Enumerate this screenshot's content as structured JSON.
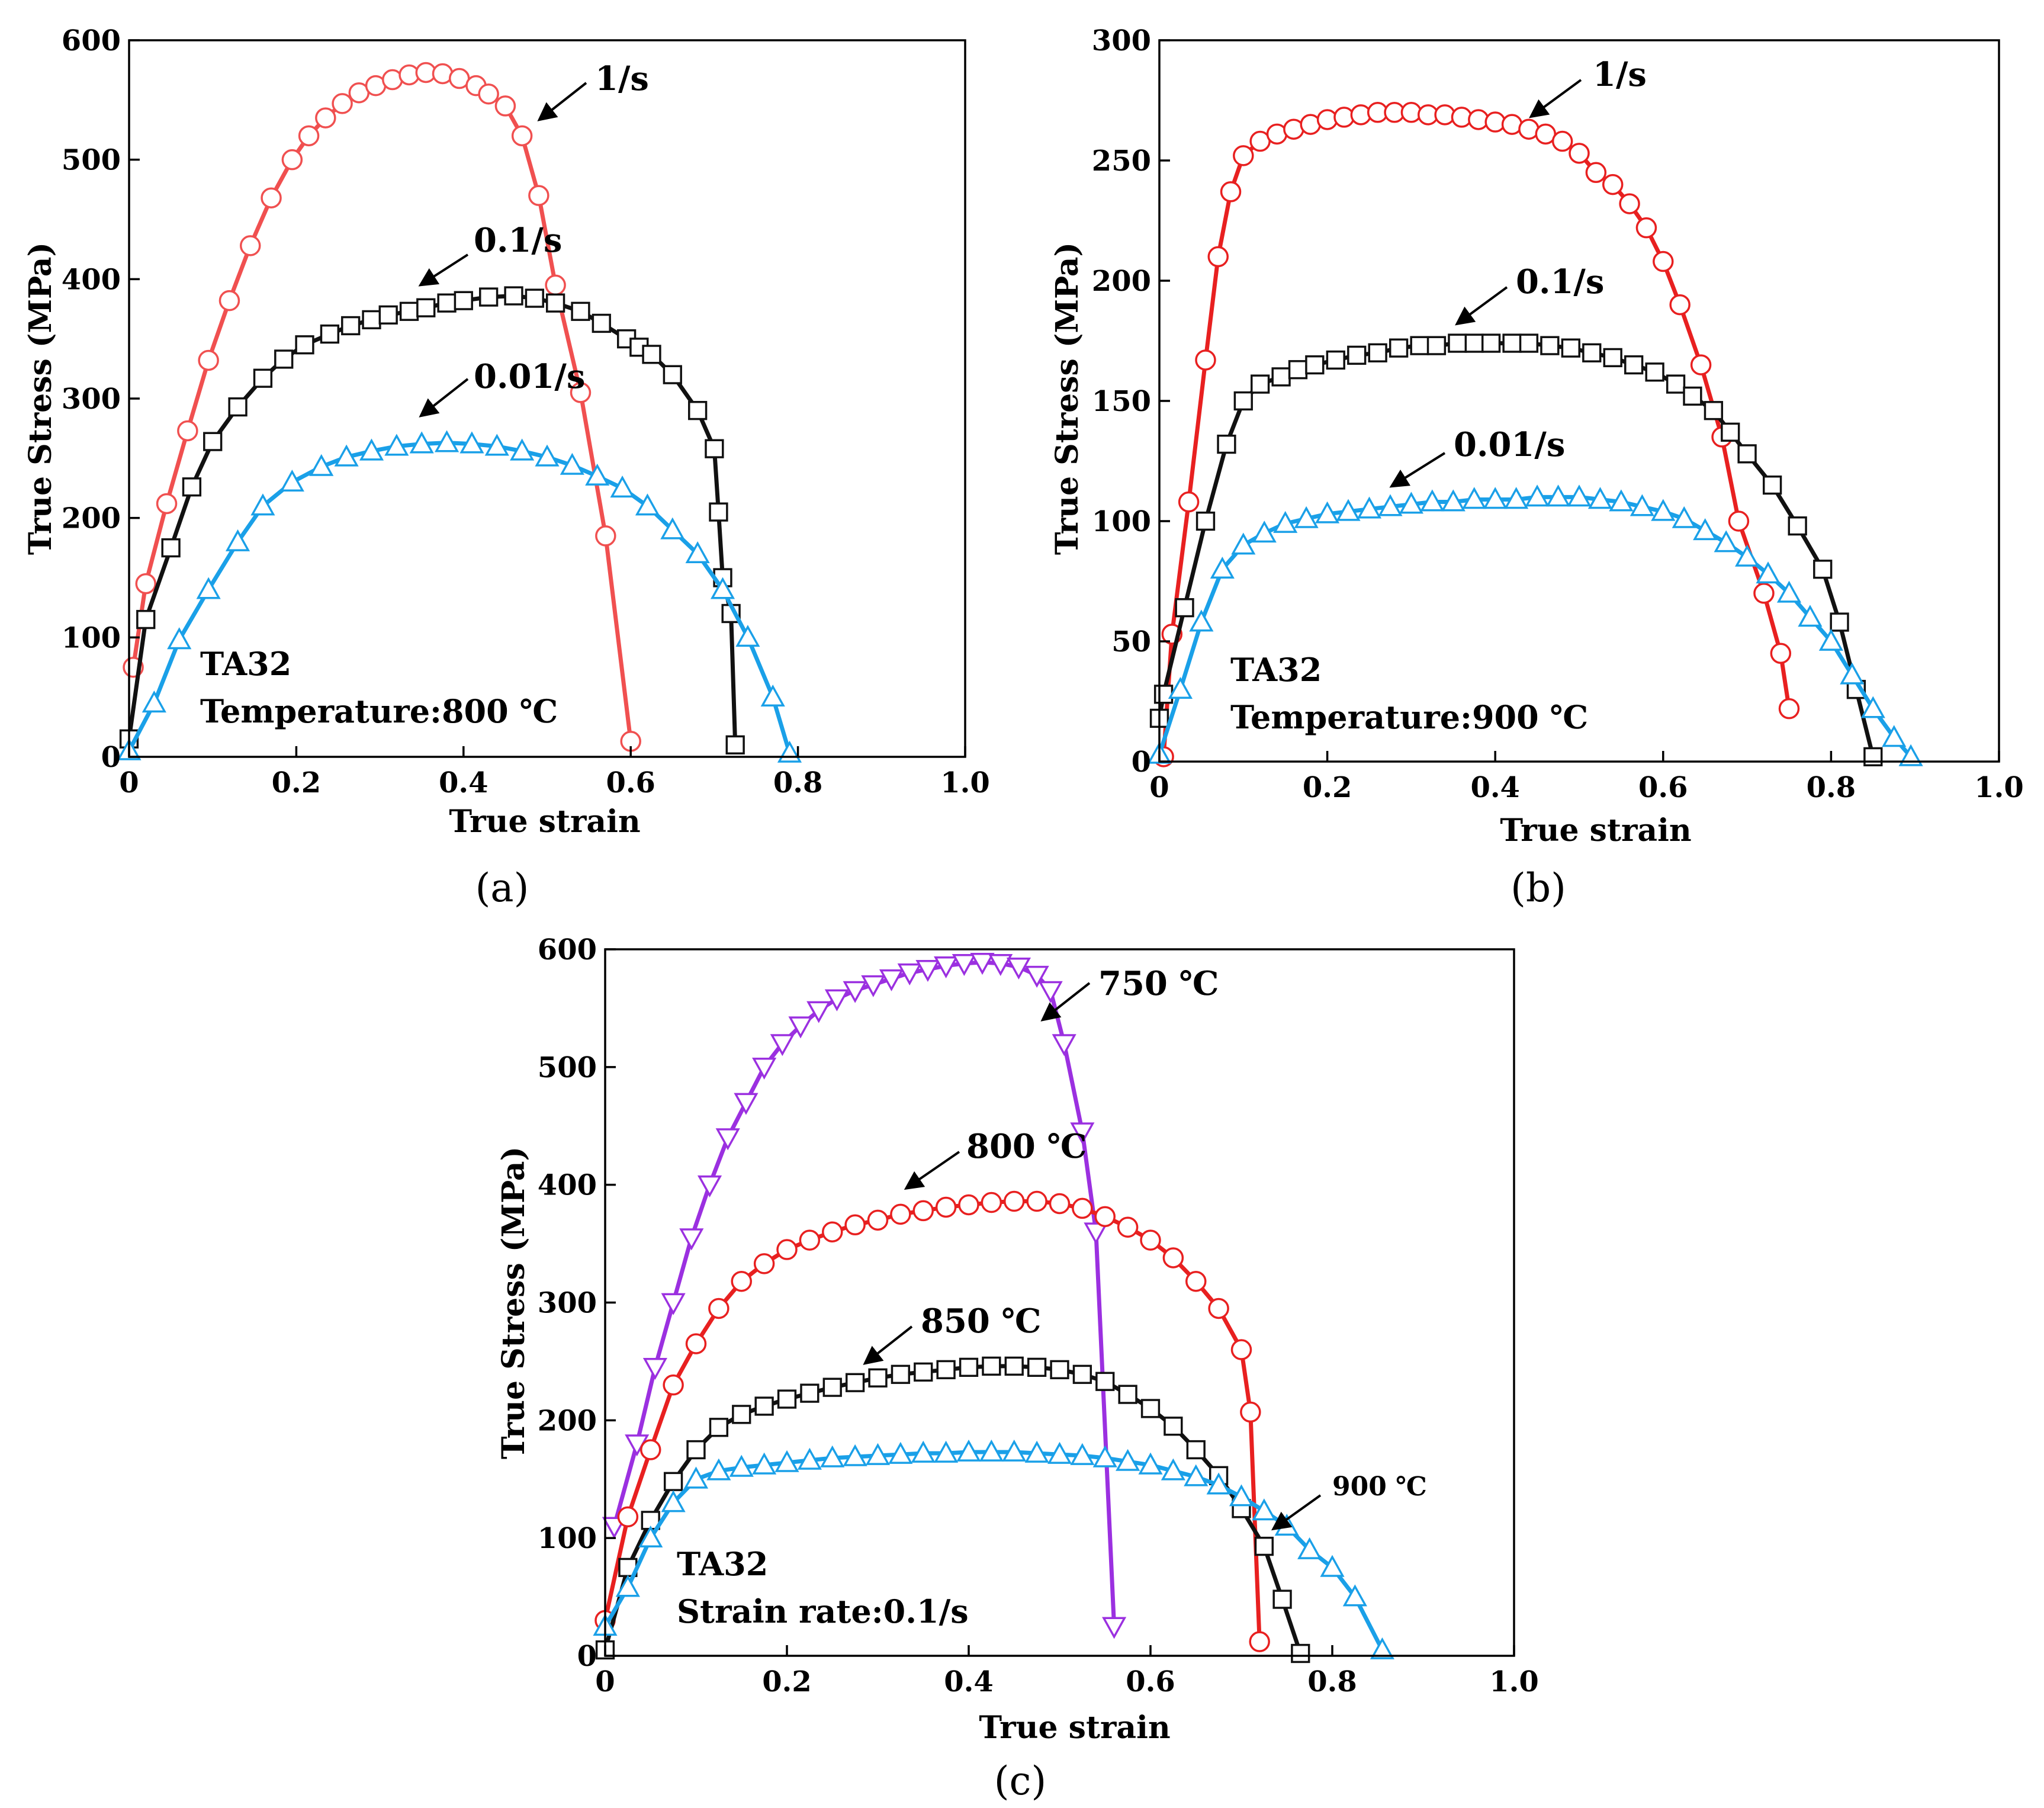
{
  "chart_data": [
    {
      "type": "line",
      "panel_label": "(a)",
      "xlabel": "True strain",
      "ylabel": "True Stress (MPa)",
      "xlim": [
        0,
        1.0
      ],
      "ylim": [
        0,
        600
      ],
      "xticks": [
        0,
        0.2,
        0.4,
        0.6,
        0.8,
        1.0
      ],
      "xtick_labels": [
        "0",
        "0.2",
        "0.4",
        "0.6",
        "0.8",
        "1.0"
      ],
      "yticks": [
        0,
        100,
        200,
        300,
        400,
        500,
        600
      ],
      "ytick_labels": [
        "0",
        "100",
        "200",
        "300",
        "400",
        "500",
        "600"
      ],
      "notes": [
        "TA32",
        "Temperature:800 ℃"
      ],
      "series": [
        {
          "name": "1/s",
          "color": "#f05050",
          "marker": "circle",
          "x": [
            0.005,
            0.02,
            0.045,
            0.07,
            0.095,
            0.12,
            0.145,
            0.17,
            0.195,
            0.215,
            0.235,
            0.255,
            0.275,
            0.295,
            0.315,
            0.335,
            0.355,
            0.375,
            0.395,
            0.415,
            0.43,
            0.45,
            0.47,
            0.49,
            0.51,
            0.54,
            0.57,
            0.6
          ],
          "y": [
            75,
            145,
            212,
            273,
            332,
            382,
            428,
            468,
            500,
            520,
            535,
            547,
            556,
            562,
            567,
            571,
            573,
            572,
            568,
            562,
            555,
            545,
            520,
            470,
            395,
            305,
            185,
            13
          ]
        },
        {
          "name": "0.1/s",
          "color": "#111111",
          "marker": "square",
          "x": [
            0,
            0.02,
            0.05,
            0.075,
            0.1,
            0.13,
            0.16,
            0.185,
            0.21,
            0.24,
            0.265,
            0.29,
            0.31,
            0.335,
            0.355,
            0.38,
            0.4,
            0.43,
            0.46,
            0.485,
            0.51,
            0.54,
            0.565,
            0.595,
            0.61,
            0.625,
            0.65,
            0.68,
            0.7,
            0.705,
            0.71,
            0.72,
            0.725
          ],
          "y": [
            15,
            115,
            175,
            226,
            264,
            293,
            317,
            333,
            345,
            354,
            361,
            366,
            370,
            373,
            376,
            380,
            382,
            385,
            386,
            384,
            380,
            373,
            363,
            350,
            343,
            337,
            320,
            290,
            258,
            205,
            150,
            120,
            10
          ]
        },
        {
          "name": "0.01/s",
          "color": "#1aa0e8",
          "marker": "triangle-up",
          "x": [
            0,
            0.03,
            0.06,
            0.095,
            0.13,
            0.16,
            0.195,
            0.23,
            0.26,
            0.29,
            0.32,
            0.35,
            0.38,
            0.41,
            0.44,
            0.47,
            0.5,
            0.53,
            0.56,
            0.59,
            0.62,
            0.65,
            0.68,
            0.71,
            0.74,
            0.77,
            0.79
          ],
          "y": [
            5,
            45,
            98,
            140,
            180,
            210,
            230,
            243,
            251,
            256,
            260,
            262,
            263,
            262,
            260,
            256,
            251,
            244,
            235,
            225,
            210,
            190,
            170,
            140,
            100,
            50,
            3
          ]
        }
      ],
      "annotations": [
        "1/s",
        "0.1/s",
        "0.01/s"
      ]
    },
    {
      "type": "line",
      "panel_label": "(b)",
      "xlabel": "True strain",
      "ylabel": "True Stress (MPa)",
      "xlim": [
        0,
        1.0
      ],
      "ylim": [
        0,
        300
      ],
      "xticks": [
        0,
        0.2,
        0.4,
        0.6,
        0.8,
        1.0
      ],
      "xtick_labels": [
        "0",
        "0.2",
        "0.4",
        "0.6",
        "0.8",
        "1.0"
      ],
      "yticks": [
        0,
        50,
        100,
        150,
        200,
        250,
        300
      ],
      "ytick_labels": [
        "0",
        "50",
        "100",
        "150",
        "200",
        "250",
        "300"
      ],
      "notes": [
        "TA32",
        "Temperature:900 ℃"
      ],
      "series": [
        {
          "name": "1/s",
          "color": "#e82020",
          "marker": "circle",
          "x": [
            0.005,
            0.015,
            0.035,
            0.055,
            0.07,
            0.085,
            0.1,
            0.12,
            0.14,
            0.16,
            0.18,
            0.2,
            0.22,
            0.24,
            0.26,
            0.28,
            0.3,
            0.32,
            0.34,
            0.36,
            0.38,
            0.4,
            0.42,
            0.44,
            0.46,
            0.48,
            0.5,
            0.52,
            0.54,
            0.56,
            0.58,
            0.6,
            0.62,
            0.645,
            0.67,
            0.69,
            0.72,
            0.74,
            0.75
          ],
          "y": [
            2,
            53,
            108,
            167,
            210,
            237,
            252,
            258,
            261,
            263,
            265,
            267,
            268,
            269,
            270,
            270,
            270,
            269,
            269,
            268,
            267,
            266,
            265,
            263,
            261,
            258,
            253,
            245,
            240,
            232,
            222,
            208,
            190,
            165,
            135,
            100,
            70,
            45,
            22
          ]
        },
        {
          "name": "0.1/s",
          "color": "#111111",
          "marker": "square",
          "x": [
            0,
            0.005,
            0.03,
            0.055,
            0.08,
            0.1,
            0.12,
            0.145,
            0.165,
            0.185,
            0.21,
            0.235,
            0.26,
            0.285,
            0.31,
            0.33,
            0.355,
            0.375,
            0.395,
            0.42,
            0.44,
            0.465,
            0.49,
            0.515,
            0.54,
            0.565,
            0.59,
            0.615,
            0.635,
            0.66,
            0.68,
            0.7,
            0.73,
            0.76,
            0.79,
            0.81,
            0.83,
            0.85
          ],
          "y": [
            18,
            28,
            64,
            100,
            132,
            150,
            157,
            160,
            163,
            165,
            167,
            169,
            170,
            172,
            173,
            173,
            174,
            174,
            174,
            174,
            174,
            173,
            172,
            170,
            168,
            165,
            162,
            157,
            152,
            146,
            137,
            128,
            115,
            98,
            80,
            58,
            30,
            2
          ]
        },
        {
          "name": "0.01/s",
          "color": "#1aa0e8",
          "marker": "triangle-up",
          "x": [
            0,
            0.025,
            0.05,
            0.075,
            0.1,
            0.125,
            0.15,
            0.175,
            0.2,
            0.225,
            0.25,
            0.275,
            0.3,
            0.325,
            0.35,
            0.375,
            0.4,
            0.425,
            0.45,
            0.475,
            0.5,
            0.525,
            0.55,
            0.575,
            0.6,
            0.625,
            0.65,
            0.675,
            0.7,
            0.725,
            0.75,
            0.775,
            0.8,
            0.825,
            0.85,
            0.875,
            0.895
          ],
          "y": [
            3,
            30,
            58,
            80,
            90,
            95,
            99,
            101,
            103,
            104,
            105,
            106,
            107,
            108,
            108,
            109,
            109,
            109,
            110,
            110,
            110,
            109,
            108,
            106,
            104,
            101,
            96,
            91,
            85,
            78,
            70,
            60,
            50,
            36,
            22,
            10,
            2
          ]
        }
      ],
      "annotations": [
        "1/s",
        "0.1/s",
        "0.01/s"
      ]
    },
    {
      "type": "line",
      "panel_label": "(c)",
      "xlabel": "True strain",
      "ylabel": "True Stress (MPa)",
      "xlim": [
        0,
        1.0
      ],
      "ylim": [
        0,
        600
      ],
      "xticks": [
        0,
        0.2,
        0.4,
        0.6,
        0.8,
        1.0
      ],
      "xtick_labels": [
        "0",
        "0.2",
        "0.4",
        "0.6",
        "0.8",
        "1.0"
      ],
      "yticks": [
        0,
        100,
        200,
        300,
        400,
        500,
        600
      ],
      "ytick_labels": [
        "0",
        "100",
        "200",
        "300",
        "400",
        "500",
        "600"
      ],
      "notes": [
        "TA32",
        "Strain rate:0.1/s"
      ],
      "series": [
        {
          "name": "750 ℃",
          "color": "#9b30e0",
          "marker": "triangle-down",
          "x": [
            0.01,
            0.035,
            0.055,
            0.075,
            0.095,
            0.115,
            0.135,
            0.155,
            0.175,
            0.195,
            0.215,
            0.235,
            0.255,
            0.275,
            0.295,
            0.315,
            0.335,
            0.355,
            0.375,
            0.395,
            0.415,
            0.435,
            0.455,
            0.475,
            0.49,
            0.505,
            0.525,
            0.54,
            0.56
          ],
          "y": [
            110,
            180,
            245,
            300,
            355,
            400,
            440,
            470,
            500,
            520,
            535,
            548,
            558,
            565,
            570,
            575,
            580,
            583,
            586,
            588,
            589,
            588,
            585,
            578,
            565,
            520,
            445,
            360,
            25
          ]
        },
        {
          "name": "800 ℃",
          "color": "#e82020",
          "marker": "circle",
          "x": [
            0,
            0.025,
            0.05,
            0.075,
            0.1,
            0.125,
            0.15,
            0.175,
            0.2,
            0.225,
            0.25,
            0.275,
            0.3,
            0.325,
            0.35,
            0.375,
            0.4,
            0.425,
            0.45,
            0.475,
            0.5,
            0.525,
            0.55,
            0.575,
            0.6,
            0.625,
            0.65,
            0.675,
            0.7,
            0.71,
            0.72
          ],
          "y": [
            30,
            118,
            175,
            230,
            265,
            295,
            318,
            333,
            345,
            353,
            360,
            366,
            370,
            375,
            378,
            381,
            383,
            385,
            386,
            386,
            384,
            380,
            373,
            364,
            353,
            338,
            318,
            295,
            260,
            207,
            12
          ]
        },
        {
          "name": "850 ℃",
          "color": "#111111",
          "marker": "square",
          "x": [
            0,
            0.025,
            0.05,
            0.075,
            0.1,
            0.125,
            0.15,
            0.175,
            0.2,
            0.225,
            0.25,
            0.275,
            0.3,
            0.325,
            0.35,
            0.375,
            0.4,
            0.425,
            0.45,
            0.475,
            0.5,
            0.525,
            0.55,
            0.575,
            0.6,
            0.625,
            0.65,
            0.675,
            0.7,
            0.725,
            0.745,
            0.765
          ],
          "y": [
            5,
            75,
            115,
            148,
            175,
            194,
            205,
            212,
            218,
            223,
            228,
            232,
            236,
            239,
            241,
            243,
            245,
            246,
            246,
            245,
            243,
            239,
            233,
            222,
            210,
            195,
            175,
            153,
            125,
            93,
            48,
            2
          ]
        },
        {
          "name": "900 ℃",
          "color": "#1aa0e8",
          "marker": "triangle-up",
          "x": [
            0,
            0.025,
            0.05,
            0.075,
            0.1,
            0.125,
            0.15,
            0.175,
            0.2,
            0.225,
            0.25,
            0.275,
            0.3,
            0.325,
            0.35,
            0.375,
            0.4,
            0.425,
            0.45,
            0.475,
            0.5,
            0.525,
            0.55,
            0.575,
            0.6,
            0.625,
            0.65,
            0.675,
            0.7,
            0.725,
            0.75,
            0.775,
            0.8,
            0.825,
            0.855
          ],
          "y": [
            25,
            58,
            100,
            130,
            150,
            157,
            160,
            162,
            164,
            166,
            168,
            169,
            170,
            171,
            172,
            172,
            173,
            173,
            173,
            172,
            171,
            170,
            168,
            165,
            162,
            157,
            152,
            145,
            135,
            123,
            110,
            90,
            75,
            50,
            5
          ]
        }
      ],
      "annotations": [
        "750 ℃",
        "800 ℃",
        "850 ℃",
        "900 ℃"
      ]
    }
  ]
}
